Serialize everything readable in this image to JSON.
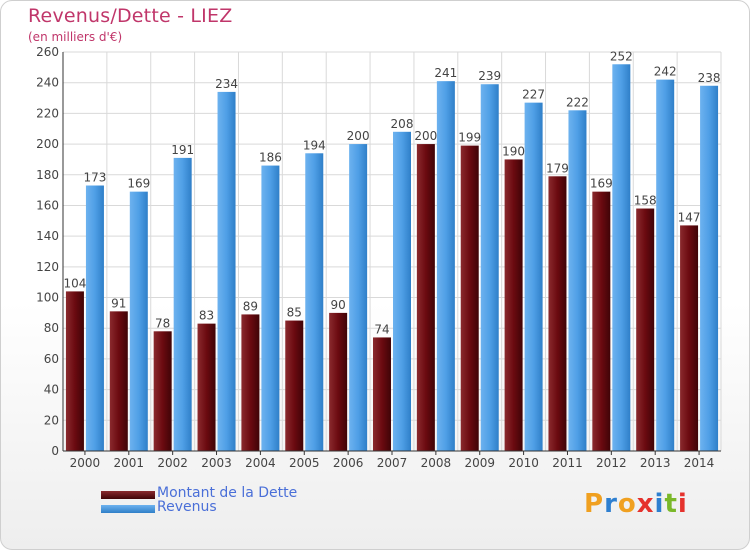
{
  "title": "Revenus/Dette - LIEZ",
  "subtitle": "(en milliers d'€)",
  "logo": {
    "text": "Proxiti"
  },
  "colors": {
    "dette": "#6b0a10",
    "revenus": "#4f9fe6",
    "title": "#c0366a",
    "legend_text": "#4a6fd8",
    "grid": "#d9d9d9"
  },
  "chart_data": {
    "type": "bar",
    "categories": [
      "2000",
      "2001",
      "2002",
      "2003",
      "2004",
      "2005",
      "2006",
      "2007",
      "2008",
      "2009",
      "2010",
      "2011",
      "2012",
      "2013",
      "2014"
    ],
    "series": [
      {
        "name": "Montant de la Dette",
        "values": [
          104,
          91,
          78,
          83,
          89,
          85,
          90,
          74,
          200,
          199,
          190,
          179,
          169,
          158,
          147
        ]
      },
      {
        "name": "Revenus",
        "values": [
          173,
          169,
          191,
          234,
          186,
          194,
          200,
          208,
          241,
          239,
          227,
          222,
          252,
          242,
          238
        ]
      }
    ],
    "ylim": [
      0,
      260
    ],
    "yticks": [
      0,
      20,
      40,
      60,
      80,
      100,
      120,
      140,
      160,
      180,
      200,
      220,
      240,
      260
    ],
    "grid": true,
    "legend_position": "bottom-left"
  }
}
